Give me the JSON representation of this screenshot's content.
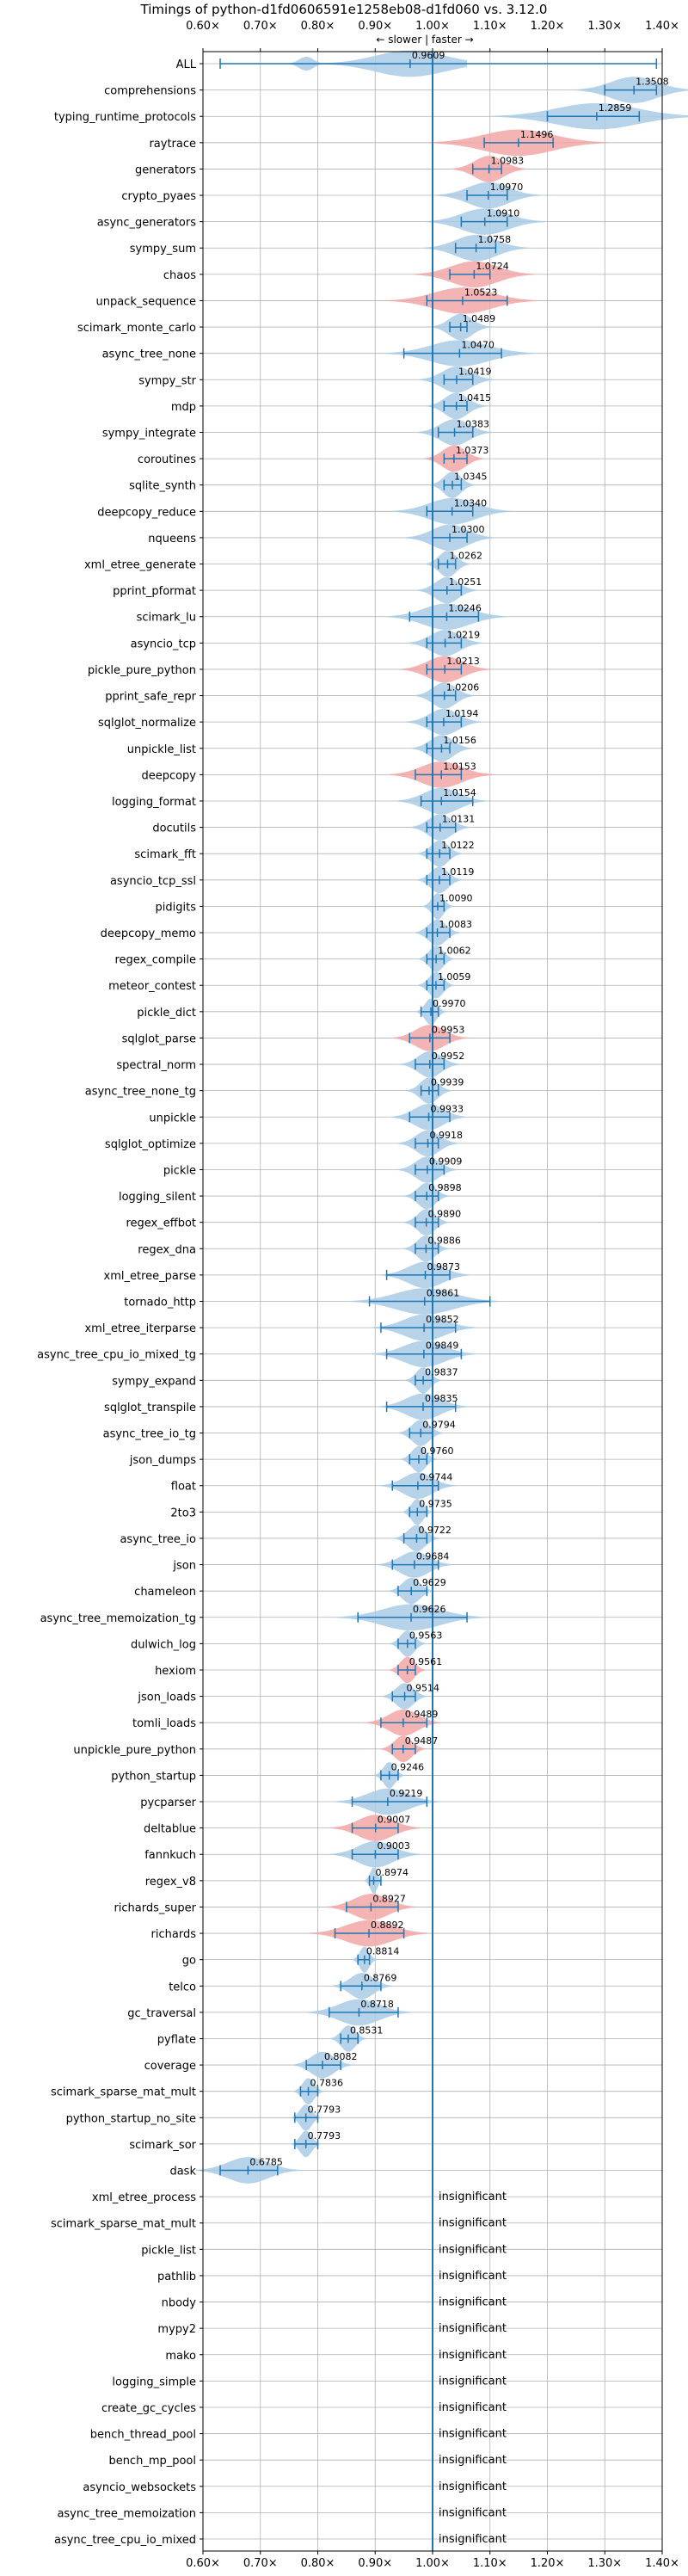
{
  "chart_data": {
    "type": "violin",
    "title": "Timings of python-d1fd0606591e1258eb08-d1fd060 vs. 3.12.0",
    "direction_label": "← slower | faster →",
    "xlim": [
      0.6,
      1.4
    ],
    "xticks": [
      0.6,
      0.7,
      0.8,
      0.9,
      1.0,
      1.1,
      1.2,
      1.3,
      1.4
    ],
    "xtick_labels": [
      "0.60×",
      "0.70×",
      "0.80×",
      "0.90×",
      "1.00×",
      "1.10×",
      "1.20×",
      "1.30×",
      "1.40×"
    ],
    "reference_line": 1.0,
    "grid": true,
    "colors": {
      "violin": "#a9cbe6",
      "violin_significant": "#f2a7a7",
      "errorbar": "#1f77b4",
      "grid": "#b0b0b0",
      "text": "#000000"
    },
    "insignificant_label": "insignificant",
    "benchmarks": [
      {
        "name": "ALL",
        "mean": 0.9609,
        "lo": 0.63,
        "hi": 1.39,
        "spread": 0.06,
        "highlight": false,
        "multimodal": true
      },
      {
        "name": "comprehensions",
        "mean": 1.3508,
        "lo": 1.3,
        "hi": 1.39,
        "spread": 0.04,
        "highlight": false
      },
      {
        "name": "typing_runtime_protocols",
        "mean": 1.2859,
        "lo": 1.2,
        "hi": 1.36,
        "spread": 0.07,
        "highlight": false
      },
      {
        "name": "raytrace",
        "mean": 1.1496,
        "lo": 1.09,
        "hi": 1.21,
        "spread": 0.06,
        "highlight": true
      },
      {
        "name": "generators",
        "mean": 1.0983,
        "lo": 1.07,
        "hi": 1.12,
        "spread": 0.025,
        "highlight": true
      },
      {
        "name": "crypto_pyaes",
        "mean": 1.097,
        "lo": 1.06,
        "hi": 1.13,
        "spread": 0.035,
        "highlight": false
      },
      {
        "name": "async_generators",
        "mean": 1.091,
        "lo": 1.05,
        "hi": 1.13,
        "spread": 0.04,
        "highlight": false
      },
      {
        "name": "sympy_sum",
        "mean": 1.0758,
        "lo": 1.04,
        "hi": 1.11,
        "spread": 0.035,
        "highlight": false
      },
      {
        "name": "chaos",
        "mean": 1.0724,
        "lo": 1.03,
        "hi": 1.1,
        "spread": 0.04,
        "highlight": true
      },
      {
        "name": "unpack_sequence",
        "mean": 1.0523,
        "lo": 0.99,
        "hi": 1.13,
        "spread": 0.05,
        "highlight": true
      },
      {
        "name": "scimark_monte_carlo",
        "mean": 1.0489,
        "lo": 1.03,
        "hi": 1.06,
        "spread": 0.02,
        "highlight": false
      },
      {
        "name": "async_tree_none",
        "mean": 1.047,
        "lo": 0.95,
        "hi": 1.12,
        "spread": 0.05,
        "highlight": false
      },
      {
        "name": "sympy_str",
        "mean": 1.0419,
        "lo": 1.02,
        "hi": 1.07,
        "spread": 0.025,
        "highlight": false
      },
      {
        "name": "mdp",
        "mean": 1.0415,
        "lo": 1.02,
        "hi": 1.06,
        "spread": 0.02,
        "highlight": false
      },
      {
        "name": "sympy_integrate",
        "mean": 1.0383,
        "lo": 1.01,
        "hi": 1.07,
        "spread": 0.025,
        "highlight": false
      },
      {
        "name": "coroutines",
        "mean": 1.0373,
        "lo": 1.02,
        "hi": 1.06,
        "spread": 0.02,
        "highlight": true
      },
      {
        "name": "sqlite_synth",
        "mean": 1.0345,
        "lo": 1.02,
        "hi": 1.05,
        "spread": 0.015,
        "highlight": false
      },
      {
        "name": "deepcopy_reduce",
        "mean": 1.034,
        "lo": 0.99,
        "hi": 1.07,
        "spread": 0.04,
        "highlight": false
      },
      {
        "name": "nqueens",
        "mean": 1.03,
        "lo": 1.0,
        "hi": 1.06,
        "spread": 0.03,
        "highlight": false
      },
      {
        "name": "xml_etree_generate",
        "mean": 1.0262,
        "lo": 1.01,
        "hi": 1.04,
        "spread": 0.015,
        "highlight": false
      },
      {
        "name": "pprint_pformat",
        "mean": 1.0251,
        "lo": 1.0,
        "hi": 1.05,
        "spread": 0.02,
        "highlight": false
      },
      {
        "name": "scimark_lu",
        "mean": 1.0246,
        "lo": 0.96,
        "hi": 1.08,
        "spread": 0.04,
        "highlight": false
      },
      {
        "name": "asyncio_tcp",
        "mean": 1.0219,
        "lo": 0.99,
        "hi": 1.05,
        "spread": 0.025,
        "highlight": false
      },
      {
        "name": "pickle_pure_python",
        "mean": 1.0213,
        "lo": 0.99,
        "hi": 1.05,
        "spread": 0.03,
        "highlight": true
      },
      {
        "name": "pprint_safe_repr",
        "mean": 1.0206,
        "lo": 1.0,
        "hi": 1.04,
        "spread": 0.02,
        "highlight": false
      },
      {
        "name": "sqlglot_normalize",
        "mean": 1.0194,
        "lo": 0.99,
        "hi": 1.05,
        "spread": 0.025,
        "highlight": false
      },
      {
        "name": "unpickle_list",
        "mean": 1.0156,
        "lo": 0.99,
        "hi": 1.03,
        "spread": 0.02,
        "highlight": false
      },
      {
        "name": "deepcopy",
        "mean": 1.0153,
        "lo": 0.97,
        "hi": 1.05,
        "spread": 0.035,
        "highlight": true
      },
      {
        "name": "logging_format",
        "mean": 1.0154,
        "lo": 0.98,
        "hi": 1.07,
        "spread": 0.03,
        "highlight": false
      },
      {
        "name": "docutils",
        "mean": 1.0131,
        "lo": 0.99,
        "hi": 1.04,
        "spread": 0.02,
        "highlight": false
      },
      {
        "name": "scimark_fft",
        "mean": 1.0122,
        "lo": 0.99,
        "hi": 1.03,
        "spread": 0.015,
        "highlight": false
      },
      {
        "name": "asyncio_tcp_ssl",
        "mean": 1.0119,
        "lo": 0.99,
        "hi": 1.03,
        "spread": 0.015,
        "highlight": false
      },
      {
        "name": "pidigits",
        "mean": 1.009,
        "lo": 1.0,
        "hi": 1.02,
        "spread": 0.01,
        "highlight": false
      },
      {
        "name": "deepcopy_memo",
        "mean": 1.0083,
        "lo": 0.99,
        "hi": 1.03,
        "spread": 0.015,
        "highlight": false
      },
      {
        "name": "regex_compile",
        "mean": 1.0062,
        "lo": 0.99,
        "hi": 1.02,
        "spread": 0.012,
        "highlight": false
      },
      {
        "name": "meteor_contest",
        "mean": 1.0059,
        "lo": 0.99,
        "hi": 1.02,
        "spread": 0.012,
        "highlight": false
      },
      {
        "name": "pickle_dict",
        "mean": 0.997,
        "lo": 0.98,
        "hi": 1.01,
        "spread": 0.01,
        "highlight": false
      },
      {
        "name": "sqlglot_parse",
        "mean": 0.9953,
        "lo": 0.96,
        "hi": 1.03,
        "spread": 0.025,
        "highlight": true
      },
      {
        "name": "spectral_norm",
        "mean": 0.9952,
        "lo": 0.97,
        "hi": 1.02,
        "spread": 0.02,
        "highlight": false
      },
      {
        "name": "async_tree_none_tg",
        "mean": 0.9939,
        "lo": 0.98,
        "hi": 1.01,
        "spread": 0.015,
        "highlight": false
      },
      {
        "name": "unpickle",
        "mean": 0.9933,
        "lo": 0.96,
        "hi": 1.03,
        "spread": 0.025,
        "highlight": false
      },
      {
        "name": "sqlglot_optimize",
        "mean": 0.9918,
        "lo": 0.97,
        "hi": 1.01,
        "spread": 0.02,
        "highlight": false
      },
      {
        "name": "pickle",
        "mean": 0.9909,
        "lo": 0.97,
        "hi": 1.02,
        "spread": 0.02,
        "highlight": false
      },
      {
        "name": "logging_silent",
        "mean": 0.9898,
        "lo": 0.97,
        "hi": 1.01,
        "spread": 0.015,
        "highlight": false
      },
      {
        "name": "regex_effbot",
        "mean": 0.989,
        "lo": 0.97,
        "hi": 1.01,
        "spread": 0.015,
        "highlight": false
      },
      {
        "name": "regex_dna",
        "mean": 0.9886,
        "lo": 0.97,
        "hi": 1.01,
        "spread": 0.015,
        "highlight": false
      },
      {
        "name": "xml_etree_parse",
        "mean": 0.9873,
        "lo": 0.92,
        "hi": 1.03,
        "spread": 0.03,
        "highlight": false
      },
      {
        "name": "tornado_http",
        "mean": 0.9861,
        "lo": 0.89,
        "hi": 1.1,
        "spread": 0.05,
        "highlight": false
      },
      {
        "name": "xml_etree_iterparse",
        "mean": 0.9852,
        "lo": 0.91,
        "hi": 1.04,
        "spread": 0.035,
        "highlight": false
      },
      {
        "name": "async_tree_cpu_io_mixed_tg",
        "mean": 0.9849,
        "lo": 0.92,
        "hi": 1.05,
        "spread": 0.035,
        "highlight": false
      },
      {
        "name": "sympy_expand",
        "mean": 0.9837,
        "lo": 0.97,
        "hi": 1.0,
        "spread": 0.012,
        "highlight": false
      },
      {
        "name": "sqlglot_transpile",
        "mean": 0.9835,
        "lo": 0.92,
        "hi": 1.04,
        "spread": 0.03,
        "highlight": false
      },
      {
        "name": "async_tree_io_tg",
        "mean": 0.9794,
        "lo": 0.96,
        "hi": 1.0,
        "spread": 0.015,
        "highlight": false
      },
      {
        "name": "json_dumps",
        "mean": 0.976,
        "lo": 0.96,
        "hi": 0.99,
        "spread": 0.012,
        "highlight": false
      },
      {
        "name": "float",
        "mean": 0.9744,
        "lo": 0.93,
        "hi": 1.01,
        "spread": 0.025,
        "highlight": false
      },
      {
        "name": "2to3",
        "mean": 0.9735,
        "lo": 0.96,
        "hi": 0.99,
        "spread": 0.01,
        "highlight": false
      },
      {
        "name": "async_tree_io",
        "mean": 0.9722,
        "lo": 0.95,
        "hi": 0.99,
        "spread": 0.015,
        "highlight": false
      },
      {
        "name": "json",
        "mean": 0.9684,
        "lo": 0.93,
        "hi": 1.01,
        "spread": 0.025,
        "highlight": false
      },
      {
        "name": "chameleon",
        "mean": 0.9629,
        "lo": 0.94,
        "hi": 0.99,
        "spread": 0.015,
        "highlight": false
      },
      {
        "name": "async_tree_memoization_tg",
        "mean": 0.9626,
        "lo": 0.87,
        "hi": 1.06,
        "spread": 0.05,
        "highlight": false
      },
      {
        "name": "dulwich_log",
        "mean": 0.9563,
        "lo": 0.94,
        "hi": 0.97,
        "spread": 0.012,
        "highlight": false
      },
      {
        "name": "hexiom",
        "mean": 0.9561,
        "lo": 0.94,
        "hi": 0.97,
        "spread": 0.012,
        "highlight": true
      },
      {
        "name": "json_loads",
        "mean": 0.9514,
        "lo": 0.93,
        "hi": 0.97,
        "spread": 0.015,
        "highlight": false
      },
      {
        "name": "tomli_loads",
        "mean": 0.9489,
        "lo": 0.91,
        "hi": 0.99,
        "spread": 0.025,
        "highlight": true
      },
      {
        "name": "unpickle_pure_python",
        "mean": 0.9487,
        "lo": 0.93,
        "hi": 0.97,
        "spread": 0.015,
        "highlight": true
      },
      {
        "name": "python_startup",
        "mean": 0.9246,
        "lo": 0.91,
        "hi": 0.94,
        "spread": 0.01,
        "highlight": false
      },
      {
        "name": "pycparser",
        "mean": 0.9219,
        "lo": 0.86,
        "hi": 0.99,
        "spread": 0.035,
        "highlight": false
      },
      {
        "name": "deltablue",
        "mean": 0.9007,
        "lo": 0.86,
        "hi": 0.94,
        "spread": 0.03,
        "highlight": true
      },
      {
        "name": "fannkuch",
        "mean": 0.9003,
        "lo": 0.86,
        "hi": 0.94,
        "spread": 0.03,
        "highlight": false
      },
      {
        "name": "regex_v8",
        "mean": 0.8974,
        "lo": 0.89,
        "hi": 0.91,
        "spread": 0.006,
        "highlight": false
      },
      {
        "name": "richards_super",
        "mean": 0.8927,
        "lo": 0.85,
        "hi": 0.94,
        "spread": 0.03,
        "highlight": true
      },
      {
        "name": "richards",
        "mean": 0.8892,
        "lo": 0.83,
        "hi": 0.95,
        "spread": 0.04,
        "highlight": true
      },
      {
        "name": "go",
        "mean": 0.8814,
        "lo": 0.87,
        "hi": 0.89,
        "spread": 0.008,
        "highlight": false
      },
      {
        "name": "telco",
        "mean": 0.8769,
        "lo": 0.84,
        "hi": 0.91,
        "spread": 0.02,
        "highlight": false
      },
      {
        "name": "gc_traversal",
        "mean": 0.8718,
        "lo": 0.82,
        "hi": 0.94,
        "spread": 0.035,
        "highlight": false
      },
      {
        "name": "pyflate",
        "mean": 0.8531,
        "lo": 0.84,
        "hi": 0.87,
        "spread": 0.012,
        "highlight": false
      },
      {
        "name": "coverage",
        "mean": 0.8082,
        "lo": 0.78,
        "hi": 0.84,
        "spread": 0.02,
        "highlight": false
      },
      {
        "name": "scimark_sparse_mat_mult",
        "mean": 0.7836,
        "lo": 0.77,
        "hi": 0.8,
        "spread": 0.01,
        "highlight": false
      },
      {
        "name": "python_startup_no_site",
        "mean": 0.7793,
        "lo": 0.76,
        "hi": 0.8,
        "spread": 0.01,
        "highlight": false
      },
      {
        "name": "scimark_sor",
        "mean": 0.7793,
        "lo": 0.76,
        "hi": 0.8,
        "spread": 0.01,
        "highlight": false
      },
      {
        "name": "dask",
        "mean": 0.6785,
        "lo": 0.63,
        "hi": 0.73,
        "spread": 0.035,
        "highlight": false
      },
      {
        "name": "xml_etree_process",
        "insignificant": true
      },
      {
        "name": "scimark_sparse_mat_mult",
        "insignificant": true
      },
      {
        "name": "pickle_list",
        "insignificant": true
      },
      {
        "name": "pathlib",
        "insignificant": true
      },
      {
        "name": "nbody",
        "insignificant": true
      },
      {
        "name": "mypy2",
        "insignificant": true
      },
      {
        "name": "mako",
        "insignificant": true
      },
      {
        "name": "logging_simple",
        "insignificant": true
      },
      {
        "name": "create_gc_cycles",
        "insignificant": true
      },
      {
        "name": "bench_thread_pool",
        "insignificant": true
      },
      {
        "name": "bench_mp_pool",
        "insignificant": true
      },
      {
        "name": "asyncio_websockets",
        "insignificant": true
      },
      {
        "name": "async_tree_memoization",
        "insignificant": true
      },
      {
        "name": "async_tree_cpu_io_mixed",
        "insignificant": true
      }
    ]
  }
}
